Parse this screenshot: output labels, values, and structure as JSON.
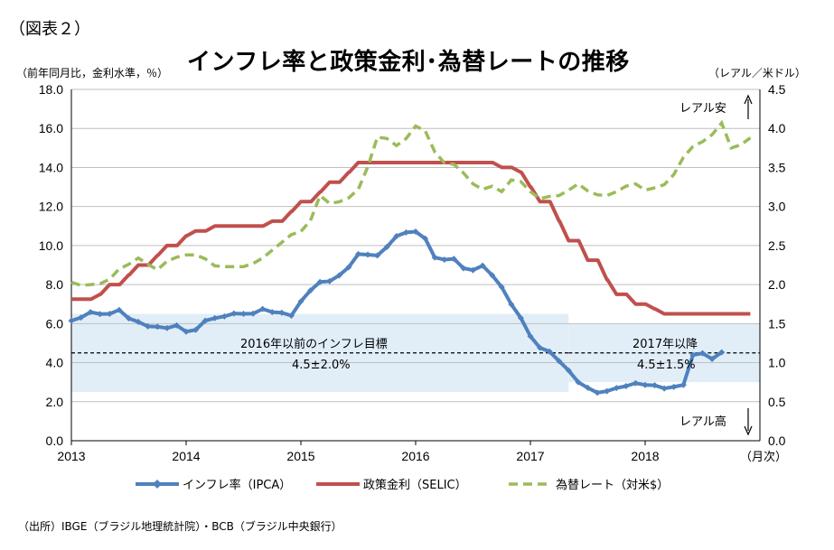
{
  "figure_label": "（図表２）",
  "title": "インフレ率と政策金利･為替レートの推移",
  "y_left_unit": "（前年同月比，金利水準，％）",
  "y_right_unit": "（レアル／米ドル）",
  "source": "（出所）IBGE（ブラジル地理統計院）・BCB（ブラジル中央銀行）",
  "chart_data": {
    "type": "line",
    "title": "インフレ率と政策金利･為替レートの推移",
    "x_tick_labels": [
      "2013",
      "2014",
      "2015",
      "2016",
      "2017",
      "2018"
    ],
    "x_unit_label": "（月次）",
    "x_range": [
      "2013-01",
      "2019-01"
    ],
    "y_left": {
      "label": "（前年同月比，金利水準，％）",
      "range": [
        0,
        18
      ],
      "ticks": [
        "0.0",
        "2.0",
        "4.0",
        "6.0",
        "8.0",
        "10.0",
        "12.0",
        "14.0",
        "16.0",
        "18.0"
      ]
    },
    "y_right": {
      "label": "（レアル／米ドル）",
      "range": [
        0,
        4.5
      ],
      "ticks": [
        "0.0",
        "0.5",
        "1.0",
        "1.5",
        "2.0",
        "2.5",
        "3.0",
        "3.5",
        "4.0",
        "4.5"
      ]
    },
    "grid": "horizontal",
    "legend_position": "bottom",
    "series": [
      {
        "name": "インフレ率（IPCA）",
        "axis": "left",
        "color": "#4F81BD",
        "style": "solid-diamond",
        "x": [
          "2013-01",
          "2013-02",
          "2013-03",
          "2013-04",
          "2013-05",
          "2013-06",
          "2013-07",
          "2013-08",
          "2013-09",
          "2013-10",
          "2013-11",
          "2013-12",
          "2014-01",
          "2014-02",
          "2014-03",
          "2014-04",
          "2014-05",
          "2014-06",
          "2014-07",
          "2014-08",
          "2014-09",
          "2014-10",
          "2014-11",
          "2014-12",
          "2015-01",
          "2015-02",
          "2015-03",
          "2015-04",
          "2015-05",
          "2015-06",
          "2015-07",
          "2015-08",
          "2015-09",
          "2015-10",
          "2015-11",
          "2015-12",
          "2016-01",
          "2016-02",
          "2016-03",
          "2016-04",
          "2016-05",
          "2016-06",
          "2016-07",
          "2016-08",
          "2016-09",
          "2016-10",
          "2016-11",
          "2016-12",
          "2017-01",
          "2017-02",
          "2017-03",
          "2017-04",
          "2017-05",
          "2017-06",
          "2017-07",
          "2017-08",
          "2017-09",
          "2017-10",
          "2017-11",
          "2017-12",
          "2018-01",
          "2018-02",
          "2018-03",
          "2018-04",
          "2018-05",
          "2018-06",
          "2018-07",
          "2018-08",
          "2018-09"
        ],
        "values": [
          6.15,
          6.31,
          6.59,
          6.49,
          6.5,
          6.7,
          6.27,
          6.09,
          5.86,
          5.84,
          5.77,
          5.91,
          5.59,
          5.68,
          6.15,
          6.28,
          6.37,
          6.52,
          6.5,
          6.51,
          6.75,
          6.59,
          6.56,
          6.41,
          7.14,
          7.7,
          8.13,
          8.17,
          8.47,
          8.89,
          9.56,
          9.53,
          9.49,
          9.93,
          10.48,
          10.67,
          10.71,
          10.36,
          9.39,
          9.28,
          9.32,
          8.84,
          8.74,
          8.97,
          8.48,
          7.87,
          6.99,
          6.29,
          5.35,
          4.76,
          4.57,
          4.08,
          3.6,
          3.0,
          2.71,
          2.46,
          2.54,
          2.7,
          2.8,
          2.95,
          2.86,
          2.84,
          2.68,
          2.76,
          2.86,
          4.39,
          4.48,
          4.19,
          4.53
        ]
      },
      {
        "name": "政策金利（SELIC）",
        "axis": "left",
        "color": "#C0504D",
        "style": "solid",
        "x": [
          "2013-01",
          "2013-03",
          "2013-04",
          "2013-05",
          "2013-07",
          "2013-08",
          "2013-10",
          "2013-11",
          "2014-01",
          "2014-02",
          "2014-04",
          "2014-05",
          "2014-10",
          "2014-12",
          "2015-01",
          "2015-03",
          "2015-04",
          "2015-06",
          "2015-07",
          "2016-10",
          "2016-12",
          "2017-01",
          "2017-02",
          "2017-04",
          "2017-05",
          "2017-07",
          "2017-09",
          "2017-10",
          "2017-12",
          "2018-02",
          "2018-03",
          "2018-09"
        ],
        "values": [
          7.25,
          7.25,
          7.5,
          8.0,
          8.5,
          9.0,
          9.5,
          10.0,
          10.5,
          10.75,
          11.0,
          11.0,
          11.25,
          11.75,
          12.25,
          12.75,
          13.25,
          13.75,
          14.25,
          14.0,
          13.75,
          13.0,
          12.25,
          11.25,
          10.25,
          9.25,
          8.25,
          7.5,
          7.0,
          6.75,
          6.5,
          6.5
        ]
      },
      {
        "name": "為替レート（対米$）",
        "axis": "right",
        "color": "#9BBB59",
        "style": "dashed",
        "x": [
          "2013-01",
          "2013-02",
          "2013-03",
          "2013-04",
          "2013-05",
          "2013-06",
          "2013-07",
          "2013-08",
          "2013-09",
          "2013-10",
          "2013-11",
          "2013-12",
          "2014-01",
          "2014-02",
          "2014-03",
          "2014-04",
          "2014-05",
          "2014-06",
          "2014-07",
          "2014-08",
          "2014-09",
          "2014-10",
          "2014-11",
          "2014-12",
          "2015-01",
          "2015-02",
          "2015-03",
          "2015-04",
          "2015-05",
          "2015-06",
          "2015-07",
          "2015-08",
          "2015-09",
          "2015-10",
          "2015-11",
          "2015-12",
          "2016-01",
          "2016-02",
          "2016-03",
          "2016-04",
          "2016-05",
          "2016-06",
          "2016-07",
          "2016-08",
          "2016-09",
          "2016-10",
          "2016-11",
          "2016-12",
          "2017-01",
          "2017-02",
          "2017-03",
          "2017-04",
          "2017-05",
          "2017-06",
          "2017-07",
          "2017-08",
          "2017-09",
          "2017-10",
          "2017-11",
          "2017-12",
          "2018-01",
          "2018-02",
          "2018-03",
          "2018-04",
          "2018-05",
          "2018-06",
          "2018-07",
          "2018-08",
          "2018-09",
          "2018-10",
          "2018-11",
          "2018-12"
        ],
        "values": [
          2.03,
          1.99,
          2.0,
          2.01,
          2.07,
          2.2,
          2.26,
          2.34,
          2.26,
          2.19,
          2.3,
          2.35,
          2.38,
          2.38,
          2.33,
          2.24,
          2.23,
          2.23,
          2.23,
          2.27,
          2.34,
          2.44,
          2.54,
          2.64,
          2.68,
          2.82,
          3.14,
          3.04,
          3.06,
          3.11,
          3.22,
          3.51,
          3.89,
          3.87,
          3.78,
          3.87,
          4.03,
          3.97,
          3.7,
          3.56,
          3.54,
          3.43,
          3.29,
          3.22,
          3.26,
          3.19,
          3.34,
          3.32,
          3.19,
          3.1,
          3.13,
          3.14,
          3.21,
          3.29,
          3.2,
          3.15,
          3.14,
          3.19,
          3.26,
          3.29,
          3.21,
          3.24,
          3.28,
          3.41,
          3.63,
          3.77,
          3.83,
          3.92,
          4.07,
          3.75,
          3.79,
          3.88
        ]
      }
    ],
    "target_bands": [
      {
        "label": "2016年以前のインフレ目標",
        "value_label": "4.5±2.0%",
        "from": "2013-01",
        "to": "2017-05",
        "center": 4.5,
        "low": 2.5,
        "high": 6.5
      },
      {
        "label": "2017年以降",
        "value_label": "4.5±1.5%",
        "from": "2017-05",
        "to": "2019-01",
        "center": 4.5,
        "low": 3.0,
        "high": 6.0
      }
    ],
    "annotations": {
      "real_weak": "レアル安",
      "real_strong": "レアル高"
    }
  }
}
